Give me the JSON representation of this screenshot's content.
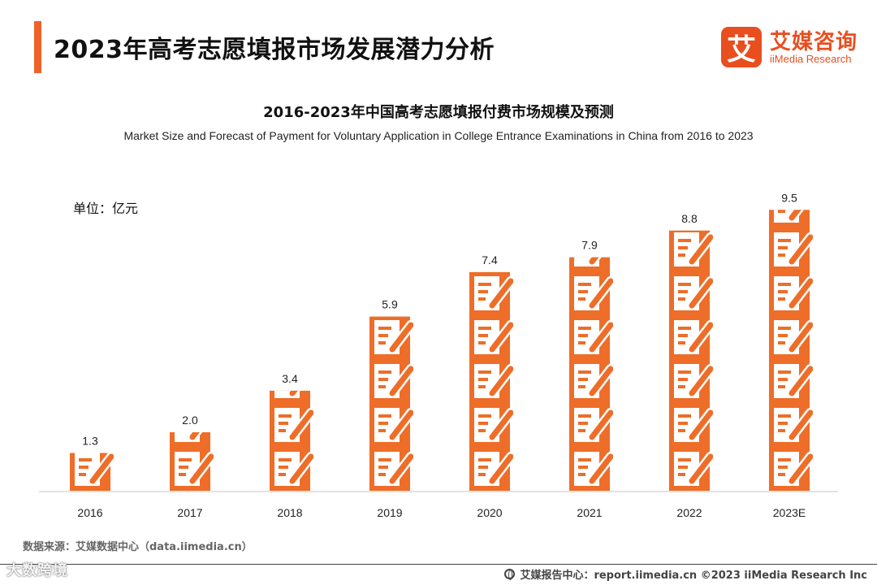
{
  "header": {
    "page_title": "2023年高考志愿填报市场发展潜力分析",
    "logo_mark": "艾",
    "logo_cn": "艾媒咨询",
    "logo_en": "iiMedia Research"
  },
  "chart_data": {
    "type": "bar",
    "title": "2016-2023年中国高考志愿填报付费市场规模及预测",
    "subtitle": "Market Size and Forecast of Payment for Voluntary Application in College Entrance Examinations in China from 2016 to 2023",
    "unit": "单位：亿元",
    "categories": [
      "2016",
      "2017",
      "2018",
      "2019",
      "2020",
      "2021",
      "2022",
      "2023E"
    ],
    "values": [
      1.3,
      2.0,
      3.4,
      5.9,
      7.4,
      7.9,
      8.8,
      9.5
    ],
    "value_labels": [
      "1.3",
      "2.0",
      "3.4",
      "5.9",
      "7.4",
      "7.9",
      "8.8",
      "9.5"
    ],
    "ylim": [
      0,
      10
    ],
    "bar_style": "stacked-icons",
    "color": "#ee6d28",
    "grid": false,
    "legend": "none"
  },
  "footer": {
    "source": "数据来源：艾媒数据中心（data.iimedia.cn）",
    "right": "艾媒报告中心：report.iimedia.cn   ©2023  iiMedia Research  Inc",
    "watermark": "大数跨境"
  },
  "colors": {
    "accent": "#f0622c",
    "brand": "#e94e1f",
    "bar": "#ee6d28"
  }
}
